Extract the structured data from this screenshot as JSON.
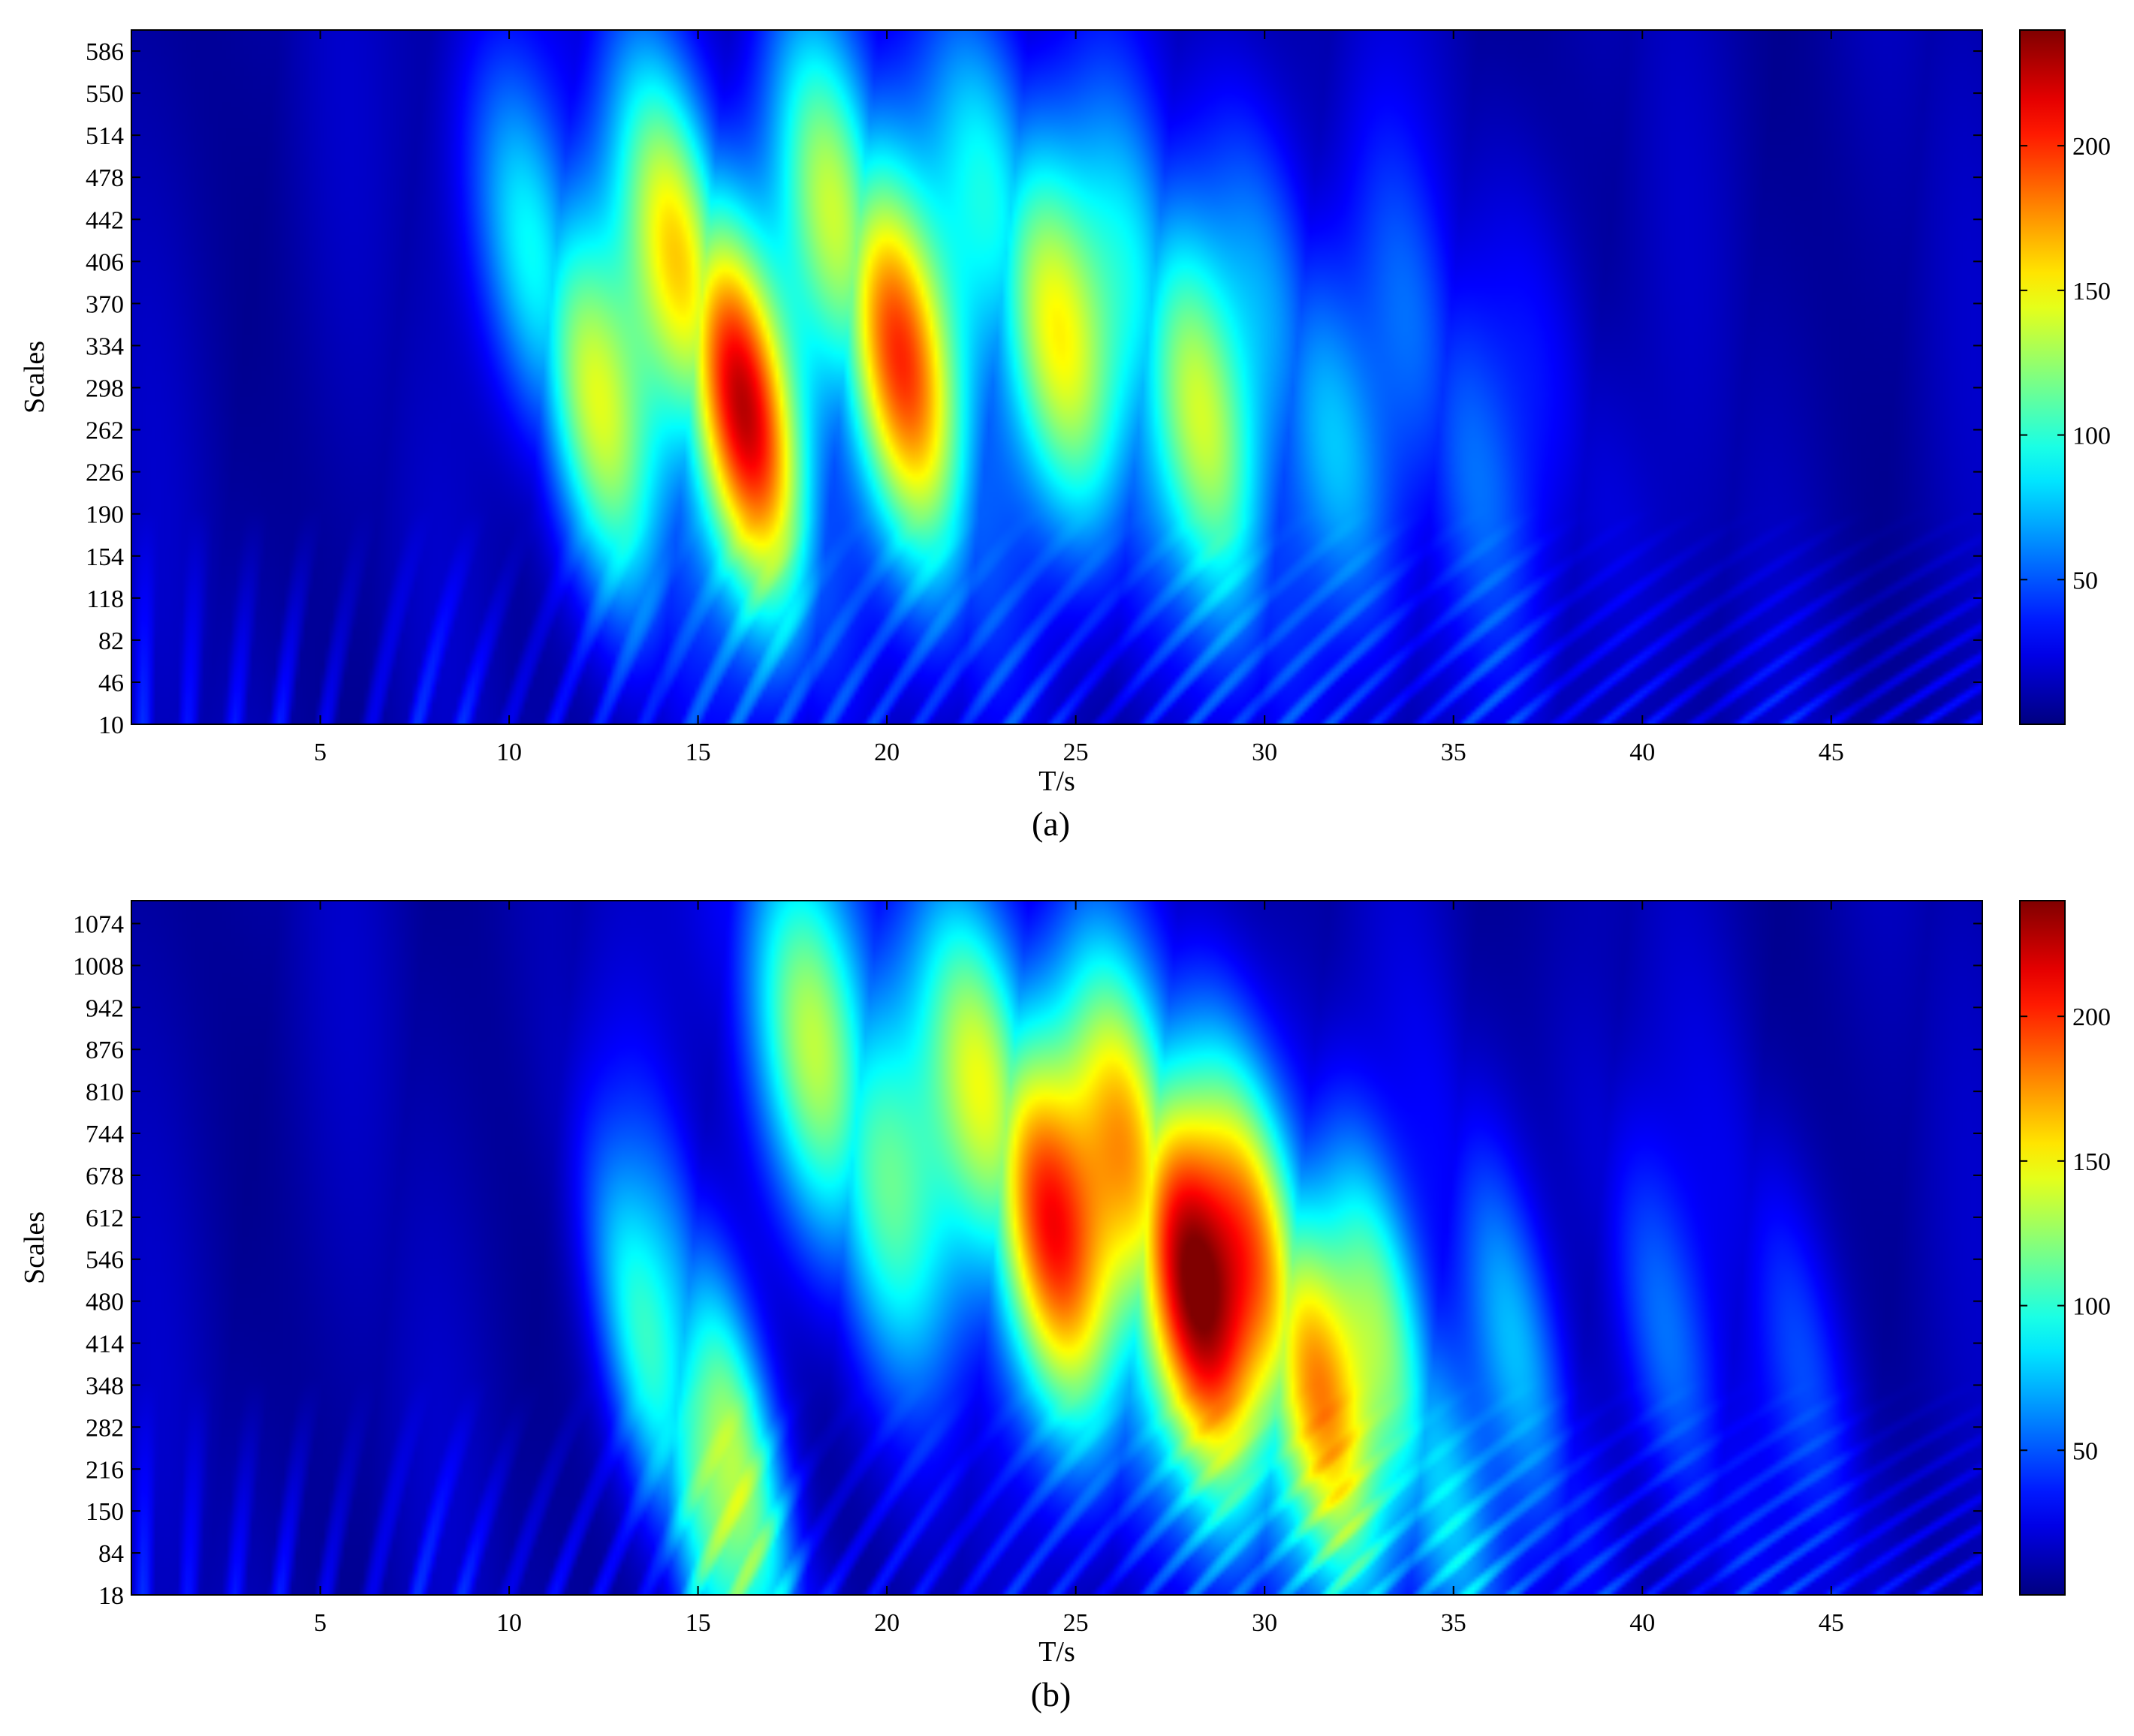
{
  "chart_data": [
    {
      "type": "heatmap",
      "panel_label": "(a)",
      "xlabel": "T/s",
      "ylabel": "Scales",
      "xlim": [
        0,
        49
      ],
      "ylim": [
        10,
        604
      ],
      "x_ticks": [
        5,
        10,
        15,
        20,
        25,
        30,
        35,
        40,
        45
      ],
      "y_ticks": [
        10,
        46,
        82,
        118,
        154,
        190,
        226,
        262,
        298,
        334,
        370,
        406,
        442,
        478,
        514,
        550,
        586
      ],
      "colormap": "jet",
      "colorbar": {
        "range": [
          0,
          240
        ],
        "ticks": [
          50,
          100,
          150,
          200
        ]
      },
      "peaks": [
        {
          "t": 11.8,
          "scale": 320,
          "value": 140
        },
        {
          "t": 15.7,
          "scale": 320,
          "value": 235
        },
        {
          "t": 19.8,
          "scale": 360,
          "value": 200
        },
        {
          "t": 24.1,
          "scale": 370,
          "value": 150
        },
        {
          "t": 28.0,
          "scale": 300,
          "value": 120
        },
        {
          "t": 31.2,
          "scale": 300,
          "value": 80
        },
        {
          "t": 34.7,
          "scale": 290,
          "value": 50
        },
        {
          "t": 38.0,
          "scale": 280,
          "value": 25
        }
      ]
    },
    {
      "type": "heatmap",
      "panel_label": "(b)",
      "xlabel": "T/s",
      "ylabel": "Scales",
      "xlim": [
        0,
        49
      ],
      "ylim": [
        18,
        1110
      ],
      "x_ticks": [
        5,
        10,
        15,
        20,
        25,
        30,
        35,
        40,
        45
      ],
      "y_ticks": [
        18,
        84,
        150,
        216,
        282,
        348,
        414,
        480,
        546,
        612,
        678,
        744,
        810,
        876,
        942,
        1008,
        1074
      ],
      "colormap": "jet",
      "colorbar": {
        "range": [
          0,
          240
        ],
        "ticks": [
          50,
          100,
          150,
          200
        ]
      },
      "peaks": [
        {
          "t": 14.2,
          "scale": 290,
          "value": 100
        },
        {
          "t": 16.0,
          "scale": 270,
          "value": 100
        },
        {
          "t": 18.7,
          "scale": 800,
          "value": 140
        },
        {
          "t": 23.8,
          "scale": 660,
          "value": 215
        },
        {
          "t": 27.6,
          "scale": 570,
          "value": 235
        },
        {
          "t": 30.8,
          "scale": 440,
          "value": 195
        },
        {
          "t": 33.6,
          "scale": 370,
          "value": 110
        },
        {
          "t": 36.8,
          "scale": 390,
          "value": 60
        },
        {
          "t": 40.6,
          "scale": 420,
          "value": 45
        },
        {
          "t": 44.3,
          "scale": 380,
          "value": 35
        }
      ]
    }
  ]
}
